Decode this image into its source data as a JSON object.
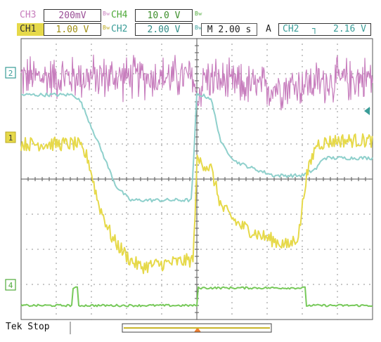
{
  "header": {
    "row1": {
      "ch3_label": "CH3",
      "ch3_scale": "200mV",
      "ch3_bw": "Bᴡ",
      "ch4_label": "CH4",
      "ch4_scale": "10.0 V",
      "ch4_bw": "Bᴡ"
    },
    "row2": {
      "ch1_label": "CH1",
      "ch1_scale": "1.00 V",
      "ch1_bw": "Bᴡ",
      "ch2_label": "CH2",
      "ch2_scale": "2.00 V",
      "ch2_bw": "Bᴡ",
      "timebase": "M 2.00 s",
      "trigger_mode": "A",
      "trigger_source": "CH2",
      "trigger_slope": "┐",
      "trigger_level": "2.16 V"
    }
  },
  "channel_markers": {
    "ch2": "2",
    "ch1": "1",
    "ch4": "4"
  },
  "status": {
    "acquisition": "Tek Stop"
  },
  "colors": {
    "ch1": "#e6d94a",
    "ch2": "#8fd0cc",
    "ch3": "#c77dbd",
    "ch4": "#77c95a",
    "trigger": "#f08030"
  },
  "chart_data": {
    "type": "line",
    "title": "",
    "xlabel": "",
    "ylabel": "",
    "x_unit": "s",
    "x_per_div": 2.0,
    "xlim": [
      -10,
      10
    ],
    "ylim_div": [
      -4,
      4
    ],
    "grid": true,
    "series": [
      {
        "name": "CH3",
        "channel": "ch3",
        "noise": "heavy",
        "x": [
          -10,
          -6,
          -2,
          -0.2,
          0,
          0.4,
          2,
          4,
          6,
          8,
          10
        ],
        "y_div": [
          2.9,
          2.9,
          2.9,
          2.9,
          2.2,
          2.9,
          2.7,
          2.6,
          2.7,
          2.8,
          2.9
        ]
      },
      {
        "name": "CH2",
        "channel": "ch2",
        "noise": "light",
        "x": [
          -10,
          -7,
          -6.6,
          -5.5,
          -4.6,
          -3.8,
          -2.5,
          -0.3,
          0,
          0.2,
          0.8,
          1.4,
          2.2,
          3.2,
          4.4,
          6.0,
          6.8,
          7.2,
          8.5,
          10
        ],
        "y_div": [
          2.4,
          2.4,
          2.2,
          0.9,
          -0.2,
          -0.6,
          -0.6,
          -0.6,
          2.4,
          2.4,
          2.3,
          1.0,
          0.5,
          0.3,
          0.1,
          0.1,
          0.3,
          0.6,
          0.6,
          0.6
        ],
        "trigger_level_div": 1.95
      },
      {
        "name": "CH1",
        "channel": "ch1",
        "noise": "medium",
        "x": [
          -10,
          -6.8,
          -6.2,
          -5.6,
          -4.8,
          -3.8,
          -3.2,
          -0.2,
          0,
          0.2,
          0.8,
          1.4,
          2.4,
          3.6,
          5.2,
          5.8,
          6.2,
          6.8,
          8,
          10
        ],
        "y_div": [
          1.0,
          1.0,
          0.6,
          -0.7,
          -1.7,
          -2.3,
          -2.5,
          -2.3,
          0.5,
          0.5,
          0.3,
          -0.8,
          -1.3,
          -1.6,
          -1.9,
          -1.6,
          0.0,
          1.0,
          1.1,
          1.1
        ]
      },
      {
        "name": "CH4",
        "channel": "ch4",
        "noise": "small",
        "x": [
          -10,
          -7.1,
          -7.1,
          -6.8,
          -6.8,
          0,
          0,
          6.2,
          6.2,
          10
        ],
        "y_div": [
          -3.6,
          -3.6,
          -3.1,
          -3.1,
          -3.6,
          -3.6,
          -3.1,
          -3.1,
          -3.6,
          -3.6
        ]
      }
    ]
  }
}
